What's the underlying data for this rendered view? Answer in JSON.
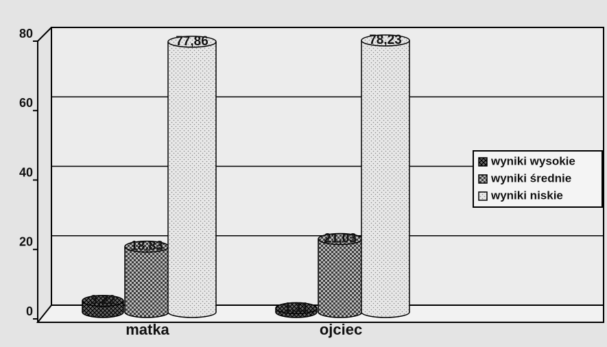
{
  "chart_data": {
    "type": "bar",
    "categories": [
      "matka",
      "ojciec"
    ],
    "series": [
      {
        "name": "wyniki wysokie",
        "color": "#6a6a6a",
        "values": [
          3.22,
          1.11
        ],
        "value_labels": [
          "3,22",
          "1,11"
        ]
      },
      {
        "name": "wyniki średnie",
        "color": "#3a3a3a",
        "values": [
          18.83,
          21.03
        ],
        "value_labels": [
          "18,83",
          "21,03"
        ]
      },
      {
        "name": "wyniki niskie",
        "color": "#e8e8e8",
        "values": [
          77.86,
          78.23
        ],
        "value_labels": [
          "77,86",
          "78,23"
        ]
      }
    ],
    "ylim": [
      0,
      80
    ],
    "yticks": [
      0,
      20,
      40,
      60,
      80
    ],
    "grid": true,
    "legend": "right"
  }
}
